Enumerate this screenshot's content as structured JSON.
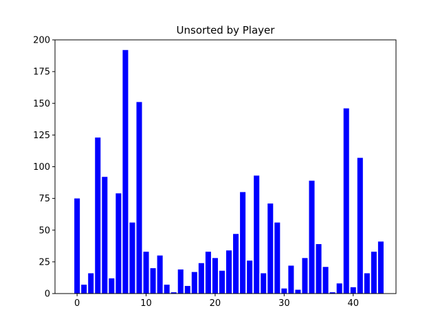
{
  "chart_data": {
    "type": "bar",
    "title": "Unsorted by Player",
    "xlabel": "",
    "ylabel": "",
    "categories": [
      0,
      1,
      2,
      3,
      4,
      5,
      6,
      7,
      8,
      9,
      10,
      11,
      12,
      13,
      14,
      15,
      16,
      17,
      18,
      19,
      20,
      21,
      22,
      23,
      24,
      25,
      26,
      27,
      28,
      29,
      30,
      31,
      32,
      33,
      34,
      35,
      36,
      37,
      38,
      39,
      40,
      41,
      42,
      43,
      44
    ],
    "values": [
      75,
      7,
      16,
      123,
      92,
      12,
      79,
      192,
      56,
      151,
      33,
      20,
      30,
      7,
      1,
      19,
      6,
      17,
      24,
      33,
      28,
      18,
      34,
      47,
      80,
      26,
      93,
      16,
      71,
      56,
      4,
      22,
      3,
      28,
      89,
      39,
      21,
      1,
      8,
      146,
      5,
      107,
      16,
      33,
      41
    ],
    "xlim": [
      -3.2,
      46.2
    ],
    "ylim": [
      0,
      200
    ],
    "xticks": [
      0,
      10,
      20,
      30,
      40
    ],
    "yticks": [
      0,
      25,
      50,
      75,
      100,
      125,
      150,
      175,
      200
    ],
    "bar_color": "#0000ff",
    "grid": false,
    "legend": "none"
  }
}
